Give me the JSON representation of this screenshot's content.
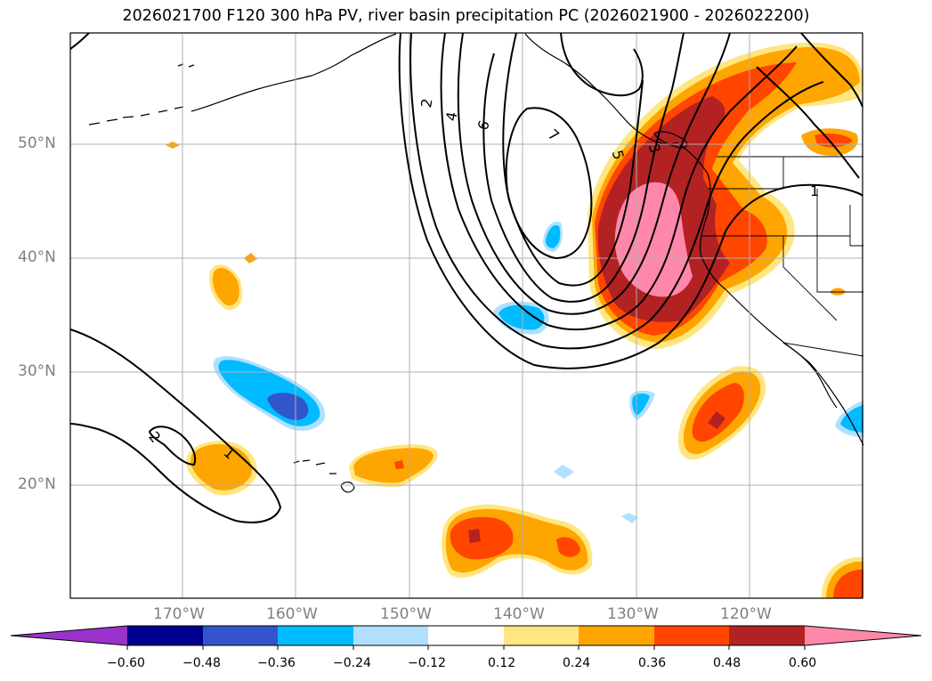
{
  "title": "2026021700 F120 300 hPa PV, river basin precipitation PC (2026021900 - 2026022200)",
  "lat_labels": [
    "50°N",
    "40°N",
    "30°N",
    "20°N"
  ],
  "lon_labels": [
    "170°W",
    "160°W",
    "150°W",
    "140°W",
    "130°W",
    "120°W"
  ],
  "contour_labels": [
    "2",
    "4",
    "6",
    "7",
    "5",
    "3",
    "1",
    "1",
    "2"
  ],
  "colorbar": {
    "levels": [
      "−0.60",
      "−0.48",
      "−0.36",
      "−0.24",
      "−0.12",
      "0.12",
      "0.24",
      "0.36",
      "0.48",
      "0.60"
    ],
    "colors": [
      "#9933cc",
      "#000090",
      "#3355cc",
      "#00bbff",
      "#b0e0ff",
      "#ffffff",
      "#ffe680",
      "#ffa500",
      "#ff4500",
      "#b22222",
      "#ff88aa"
    ]
  },
  "palette": {
    "pink": "#ff88aa",
    "darkred": "#b22222",
    "orangered": "#ff4500",
    "orange": "#ffa500",
    "yellow": "#ffe680",
    "lightblue": "#b0e0ff",
    "cyan": "#00bbff",
    "blue": "#3355cc",
    "grid": "#b0b0b0"
  }
}
